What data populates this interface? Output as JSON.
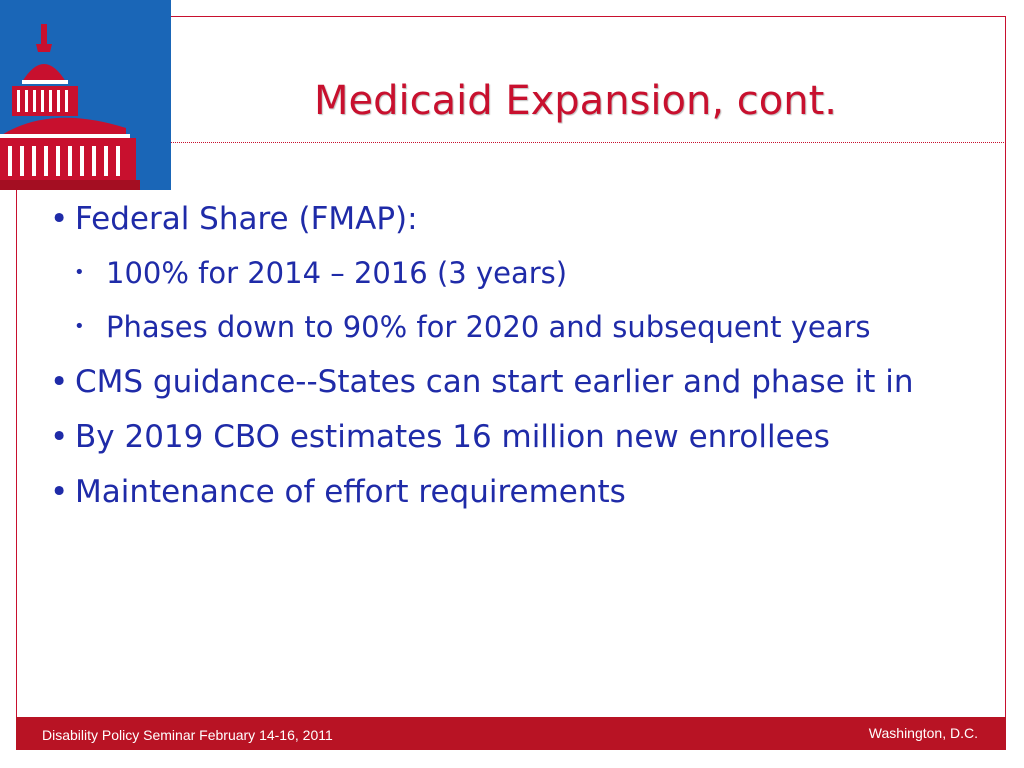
{
  "slide": {
    "title": "Medicaid Expansion, cont.",
    "bullets": [
      {
        "text": "Federal Share (FMAP):",
        "sub": [
          "100% for 2014 – 2016 (3 years)",
          "Phases down to 90% for 2020 and subsequent years"
        ]
      },
      {
        "text": "CMS guidance--States can start earlier and phase it in"
      },
      {
        "text": "By 2019 CBO estimates 16 million new enrollees"
      },
      {
        "text": "Maintenance of effort requirements"
      }
    ],
    "bullet_glyph": "•"
  },
  "footer": {
    "left": "Disability Policy Seminar February 14-16, 2011",
    "right": "Washington, D.C."
  },
  "logo": {
    "icon": "capitol-dome-icon"
  },
  "colors": {
    "title": "#c8102e",
    "body_text": "#1f2ba8",
    "footer_bg": "#b81324",
    "logo_bg": "#1a66b7"
  }
}
